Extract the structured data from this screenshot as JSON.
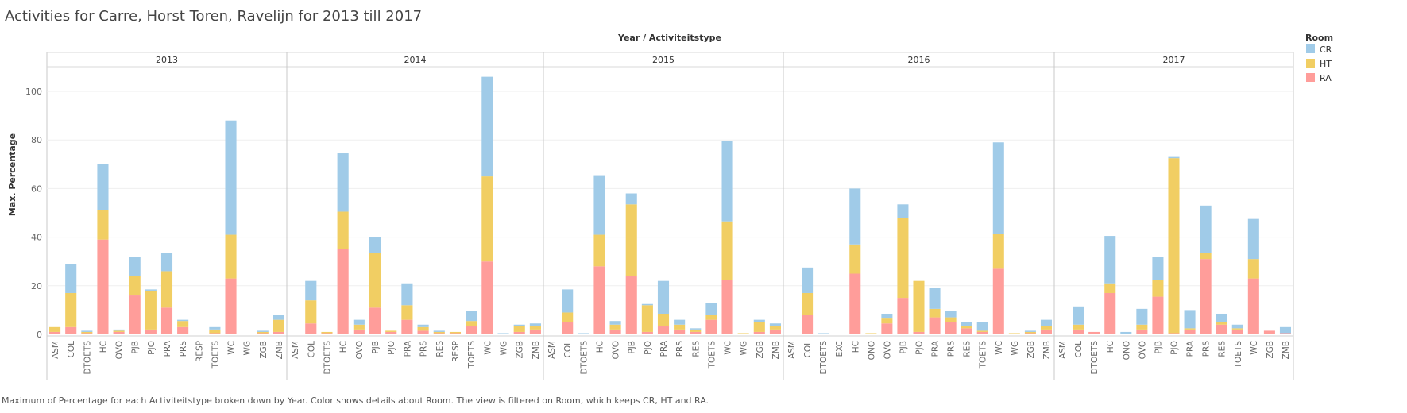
{
  "title": "Activities for Carre, Horst Toren, Ravelijn for 2013 till 2017",
  "footer": "Maximum of Percentage for each Activiteitstype broken down by Year.  Color shows details about Room. The view is filtered on Room, which keeps CR, HT and RA.",
  "chart_data": {
    "type": "bar",
    "stacked": true,
    "column_header": "Year / Activiteitstype",
    "ylabel": "Max. Percentage",
    "ylim": [
      0,
      110
    ],
    "yticks": [
      0,
      20,
      40,
      60,
      80,
      100
    ],
    "legend": {
      "title": "Room",
      "placement": "right",
      "items": [
        {
          "name": "CR",
          "color": "#a0cbe8"
        },
        {
          "name": "HT",
          "color": "#f1ce63"
        },
        {
          "name": "RA",
          "color": "#ff9d9a"
        }
      ]
    },
    "panels": [
      {
        "year": "2013",
        "categories": [
          "ASM",
          "COL",
          "DTOETS",
          "HC",
          "OVO",
          "PJB",
          "PJO",
          "PRA",
          "PRS",
          "RESP",
          "TOETS",
          "WC",
          "WG",
          "ZGB",
          "ZMB"
        ],
        "RA": [
          1,
          3,
          0.5,
          39,
          1,
          16,
          2,
          11,
          3,
          0,
          0.5,
          23,
          0,
          0.5,
          1
        ],
        "HT": [
          2,
          14,
          0.5,
          12,
          0.5,
          8,
          16,
          15,
          2.5,
          0,
          1.5,
          18,
          0,
          0.5,
          5
        ],
        "CR": [
          0,
          12,
          0.5,
          19,
          0.5,
          8,
          0.5,
          7.5,
          0.5,
          0,
          1,
          47,
          0,
          0.5,
          2
        ]
      },
      {
        "year": "2014",
        "categories": [
          "ASM",
          "COL",
          "DTOETS",
          "HC",
          "OVO",
          "PJB",
          "PJO",
          "PRA",
          "PRS",
          "RES",
          "RESP",
          "TOETS",
          "WC",
          "WG",
          "ZGB",
          "ZMB"
        ],
        "RA": [
          0,
          4.5,
          0.5,
          35,
          2,
          11,
          1,
          6,
          1.5,
          0.5,
          0.5,
          3.5,
          30,
          0,
          1,
          2
        ],
        "HT": [
          0,
          9.5,
          0.5,
          15.5,
          2,
          22.5,
          0.5,
          6,
          1.5,
          0.5,
          0.5,
          2,
          35,
          0,
          2.5,
          1.5
        ],
        "CR": [
          0,
          8,
          0,
          24,
          2,
          6.5,
          0,
          9,
          1,
          0.5,
          0,
          4,
          41,
          0.5,
          0.5,
          1
        ]
      },
      {
        "year": "2015",
        "categories": [
          "ASM",
          "COL",
          "DTOETS",
          "HC",
          "OVO",
          "PJB",
          "PJO",
          "PRA",
          "PRS",
          "RES",
          "TOETS",
          "WC",
          "WG",
          "ZGB",
          "ZMB"
        ],
        "RA": [
          0,
          5,
          0,
          28,
          2,
          24,
          1,
          3.5,
          2,
          1,
          6,
          22.5,
          0,
          1,
          2
        ],
        "HT": [
          0,
          4,
          0,
          13,
          2,
          29.5,
          11,
          5,
          2,
          1,
          2,
          24,
          0.5,
          4,
          1.5
        ],
        "CR": [
          0,
          9.5,
          0.5,
          24.5,
          1.5,
          4.5,
          0.5,
          13.5,
          2,
          0.5,
          5,
          33,
          0,
          1,
          1
        ]
      },
      {
        "year": "2016",
        "categories": [
          "ASM",
          "COL",
          "DTOETS",
          "EXC",
          "HC",
          "ONO",
          "OVO",
          "PJB",
          "PJO",
          "PRA",
          "PRS",
          "RES",
          "TOETS",
          "WC",
          "WG",
          "ZGB",
          "ZMB"
        ],
        "RA": [
          0,
          8,
          0,
          0,
          25,
          0,
          4.5,
          15,
          1,
          7,
          5,
          2.5,
          1,
          27,
          0,
          0.5,
          2
        ],
        "HT": [
          0,
          9,
          0,
          0,
          12,
          0.5,
          2,
          33,
          21,
          3.5,
          2,
          1,
          0.5,
          14.5,
          0.5,
          0.5,
          1.5
        ],
        "CR": [
          0,
          10.5,
          0.5,
          0,
          23,
          0,
          2,
          5.5,
          0,
          8.5,
          2.5,
          1.5,
          3.5,
          37.5,
          0,
          0.5,
          2.5
        ]
      },
      {
        "year": "2017",
        "categories": [
          "ASM",
          "COL",
          "DTOETS",
          "HC",
          "ONO",
          "OVO",
          "PJB",
          "PJO",
          "PRA",
          "PRS",
          "RES",
          "TOETS",
          "WC",
          "ZGB",
          "ZMB"
        ],
        "RA": [
          0,
          2,
          1,
          17,
          0,
          2,
          15.5,
          0.5,
          2,
          31,
          4,
          2,
          23,
          1.5,
          0.5
        ],
        "HT": [
          0,
          2,
          0,
          4,
          0,
          2,
          7,
          72,
          0.5,
          2.5,
          1,
          0.5,
          8,
          0,
          0
        ],
        "CR": [
          0,
          7.5,
          0,
          19.5,
          1,
          6.5,
          9.5,
          0.5,
          7.5,
          19.5,
          3.5,
          1.5,
          16.5,
          0,
          2.5
        ]
      }
    ]
  }
}
